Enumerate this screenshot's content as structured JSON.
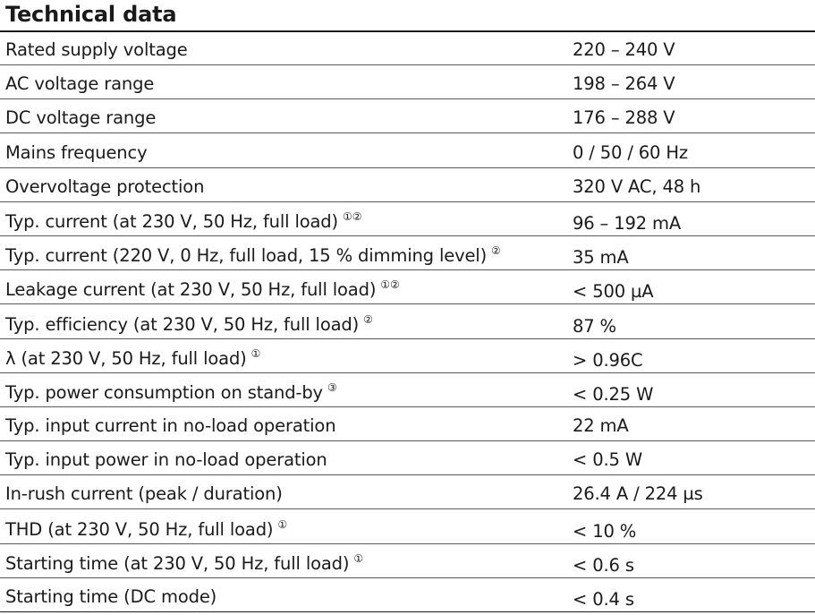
{
  "title": "Technical data",
  "rows": [
    {
      "label": "Rated supply voltage",
      "note": "",
      "value": "220 – 240 V"
    },
    {
      "label": "AC voltage range",
      "note": "",
      "value": "198 – 264 V"
    },
    {
      "label": "DC voltage range",
      "note": "",
      "value": "176 – 288 V"
    },
    {
      "label": "Mains frequency",
      "note": "",
      "value": "0 / 50 / 60 Hz"
    },
    {
      "label": "Overvoltage protection",
      "note": "",
      "value": "320 V AC, 48 h"
    },
    {
      "label": "Typ. current (at 230 V, 50 Hz, full load)",
      "note": "①②",
      "value": "96 – 192 mA"
    },
    {
      "label": "Typ. current (220 V, 0 Hz, full load, 15 % dimming level)",
      "note": "②",
      "value": "35 mA"
    },
    {
      "label": "Leakage current (at 230 V, 50 Hz, full load)",
      "note": "①②",
      "value": "< 500 µA"
    },
    {
      "label": "Typ. efficiency (at 230 V, 50 Hz, full load)",
      "note": "②",
      "value": "87 %"
    },
    {
      "label": "λ (at 230 V, 50 Hz, full load)",
      "note": "①",
      "value": "> 0.96C"
    },
    {
      "label": "Typ. power consumption on stand-by",
      "note": "③",
      "value": "< 0.25 W"
    },
    {
      "label": "Typ. input current in no-load operation",
      "note": "",
      "value": "22 mA"
    },
    {
      "label": "Typ. input power in no-load operation",
      "note": "",
      "value": "< 0.5 W"
    },
    {
      "label": "In-rush current (peak / duration)",
      "note": "",
      "value": "26.4 A / 224 µs"
    },
    {
      "label": "THD (at 230 V, 50 Hz, full load)",
      "note": "①",
      "value": "< 10 %"
    },
    {
      "label": "Starting time (at 230 V, 50 Hz, full load)",
      "note": "①",
      "value": "< 0.6 s"
    },
    {
      "label": "Starting time (DC mode)",
      "note": "",
      "value": "< 0.4 s"
    }
  ]
}
